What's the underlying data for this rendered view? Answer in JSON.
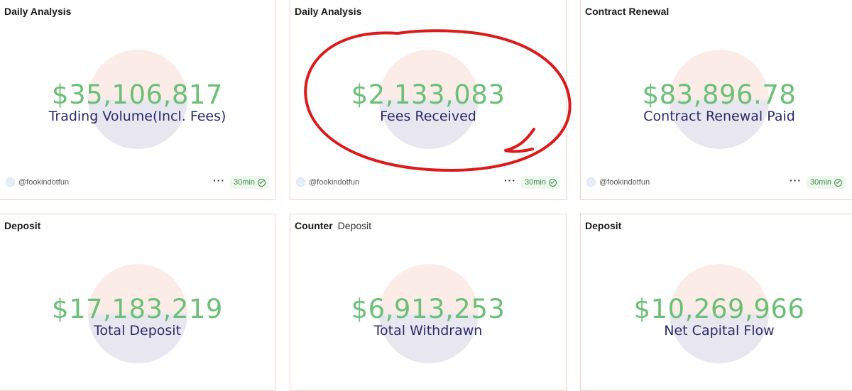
{
  "cards": [
    {
      "title": "Daily Analysis",
      "subtitle": "",
      "value": "$35,106,817",
      "label": "Trading Volume(Incl. Fees)",
      "author": "@fookindotfun",
      "refresh": "30min"
    },
    {
      "title": "Daily Analysis",
      "subtitle": "",
      "value": "$2,133,083",
      "label": "Fees Received",
      "author": "@fookindotfun",
      "refresh": "30min"
    },
    {
      "title": "Contract Renewal",
      "subtitle": "",
      "value": "$83,896.78",
      "label": "Contract Renewal Paid",
      "author": "@fookindotfun",
      "refresh": "30min"
    },
    {
      "title": "Deposit",
      "subtitle": "",
      "value": "$17,183,219",
      "label": "Total Deposit"
    },
    {
      "title": "Counter",
      "subtitle": "Deposit",
      "value": "$6,913,253",
      "label": "Total Withdrawn"
    },
    {
      "title": "Deposit",
      "subtitle": "",
      "value": "$10,269,966",
      "label": "Net Capital Flow"
    }
  ],
  "colors": {
    "value": "#6cbf76",
    "label": "#2b2a6a",
    "border": "#efd2c8",
    "annotation": "#dd1a1a"
  },
  "icons": {
    "more": "more-dots-icon",
    "refresh_status": "check-circle-icon",
    "author": "avatar-icon"
  },
  "glyphs": {
    "more": "···"
  }
}
